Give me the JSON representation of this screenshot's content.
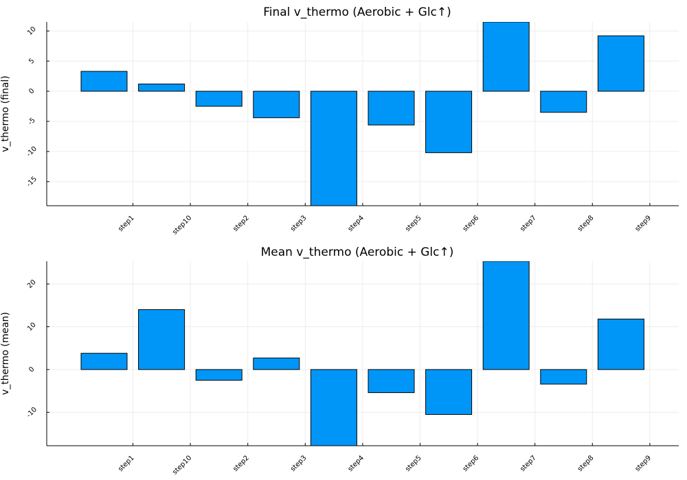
{
  "chart_data": [
    {
      "type": "bar",
      "title": "Final v_thermo (Aerobic + Glc↑)",
      "ylabel": "v_thermo (final)",
      "xlabel": "",
      "categories": [
        "step1",
        "step10",
        "step2",
        "step3",
        "step4",
        "step5",
        "step6",
        "step7",
        "step8",
        "step9"
      ],
      "values": [
        3.3,
        1.2,
        -2.5,
        -4.4,
        -19.5,
        -5.6,
        -10.2,
        11.5,
        -3.5,
        9.2
      ],
      "yticks": [
        10,
        5,
        0,
        -5,
        -10,
        -15
      ],
      "ylim": [
        -19,
        11.5
      ],
      "grid": true,
      "legend": "none"
    },
    {
      "type": "bar",
      "title": "Mean v_thermo (Aerobic + Glc↑)",
      "ylabel": "v_thermo (mean)",
      "xlabel": "",
      "categories": [
        "step1",
        "step10",
        "step2",
        "step3",
        "step4",
        "step5",
        "step6",
        "step7",
        "step8",
        "step9"
      ],
      "values": [
        3.8,
        14.0,
        -2.5,
        2.7,
        -18.0,
        -5.4,
        -10.5,
        25.3,
        -3.4,
        11.8
      ],
      "yticks": [
        20,
        10,
        0,
        -10
      ],
      "ylim": [
        -17.8,
        25.3
      ],
      "grid": true,
      "legend": "none"
    }
  ]
}
